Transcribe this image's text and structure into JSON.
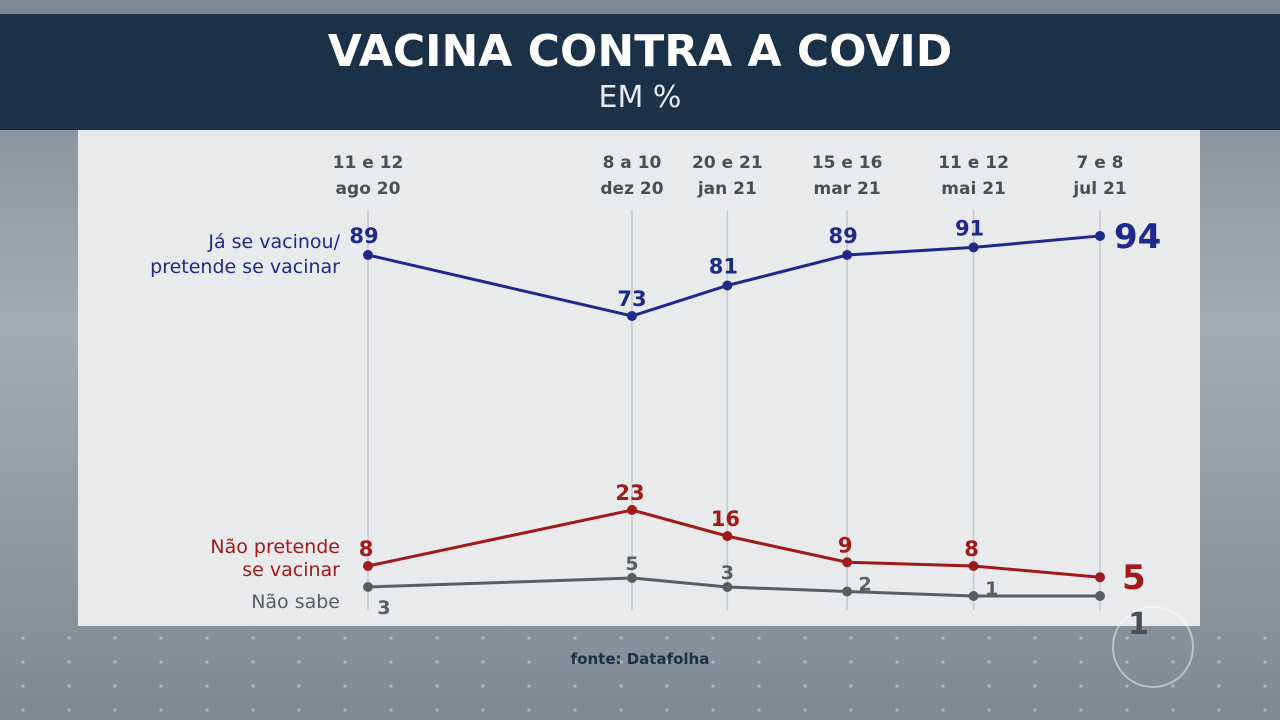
{
  "header": {
    "title": "VACINA CONTRA A COVID",
    "subtitle": "EM %"
  },
  "source": "fonte: Datafolha",
  "chart_data": {
    "type": "line",
    "title": "VACINA CONTRA A COVID",
    "subtitle": "EM %",
    "x": [
      {
        "line1": "11 e 12",
        "line2": "ago 20"
      },
      {
        "line1": "8 a 10",
        "line2": "dez 20"
      },
      {
        "line1": "20 e 21",
        "line2": "jan 21"
      },
      {
        "line1": "15 e 16",
        "line2": "mar 21"
      },
      {
        "line1": "11 e 12",
        "line2": "mai 21"
      },
      {
        "line1": "7 e 8",
        "line2": "jul 21"
      }
    ],
    "x_dates": [
      "2020-08-11",
      "2020-12-08",
      "2021-01-20",
      "2021-03-15",
      "2021-05-11",
      "2021-07-07"
    ],
    "series": [
      {
        "name_lines": [
          "Já se vacinou/",
          "pretende se vacinar"
        ],
        "values": [
          89,
          73,
          81,
          89,
          91,
          94
        ],
        "color": "#1d2a8c"
      },
      {
        "name_lines": [
          "Não pretende",
          "se vacinar"
        ],
        "values": [
          8,
          23,
          16,
          9,
          8,
          5
        ],
        "color": "#a01a1a"
      },
      {
        "name_lines": [
          "Não sabe"
        ],
        "values": [
          3,
          5,
          3,
          2,
          1,
          1
        ],
        "color": "#5a5d62"
      }
    ],
    "ylim": [
      0,
      100
    ],
    "grid": "vertical",
    "legend": "left"
  }
}
